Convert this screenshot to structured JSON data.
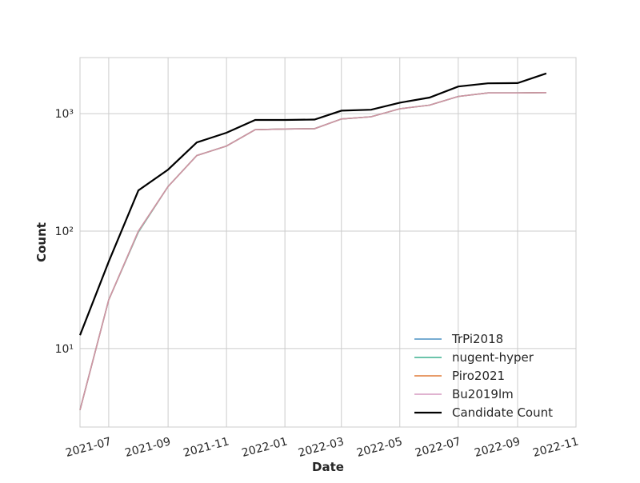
{
  "chart_data": {
    "type": "line",
    "xlabel": "Date",
    "ylabel": "Count",
    "x": [
      "2021-06",
      "2021-07",
      "2021-08",
      "2021-09",
      "2021-10",
      "2021-11",
      "2021-12",
      "2022-01",
      "2022-02",
      "2022-03",
      "2022-04",
      "2022-05",
      "2022-06",
      "2022-07",
      "2022-08",
      "2022-09",
      "2022-10"
    ],
    "series": [
      {
        "name": "TrPi2018",
        "color": "#4a90c4",
        "values": [
          3,
          26,
          100,
          240,
          440,
          530,
          730,
          740,
          745,
          900,
          940,
          1100,
          1180,
          1400,
          1500,
          1500,
          1510
        ]
      },
      {
        "name": "nugent-hyper",
        "color": "#3cb08f",
        "values": [
          3,
          26,
          98,
          240,
          440,
          530,
          730,
          740,
          745,
          900,
          940,
          1100,
          1180,
          1400,
          1500,
          1500,
          1510
        ]
      },
      {
        "name": "Piro2021",
        "color": "#e07b39",
        "values": [
          3,
          26,
          100,
          240,
          440,
          530,
          730,
          740,
          745,
          900,
          940,
          1100,
          1180,
          1400,
          1500,
          1500,
          1510
        ]
      },
      {
        "name": "Bu2019lm",
        "color": "#d59ac0",
        "values": [
          3,
          26,
          100,
          240,
          440,
          530,
          730,
          740,
          745,
          900,
          940,
          1100,
          1180,
          1400,
          1500,
          1500,
          1510
        ]
      },
      {
        "name": "Candidate Count",
        "color": "#000000",
        "values": [
          13,
          55,
          222,
          334,
          569,
          687,
          883,
          883,
          890,
          1060,
          1080,
          1240,
          1370,
          1700,
          1810,
          1820,
          2200
        ]
      }
    ],
    "xlim": [
      "2021-06",
      "2022-11"
    ],
    "xticks": [
      "2021-07",
      "2021-09",
      "2021-11",
      "2022-01",
      "2022-03",
      "2022-05",
      "2022-07",
      "2022-09",
      "2022-11"
    ],
    "ylim": [
      2.15,
      3000
    ],
    "log_y": true,
    "yticks": [
      {
        "value": 10,
        "label": "10¹"
      },
      {
        "value": 100,
        "label": "10²"
      },
      {
        "value": 1000,
        "label": "10³"
      }
    ],
    "grid": true,
    "legend": "lower right"
  }
}
